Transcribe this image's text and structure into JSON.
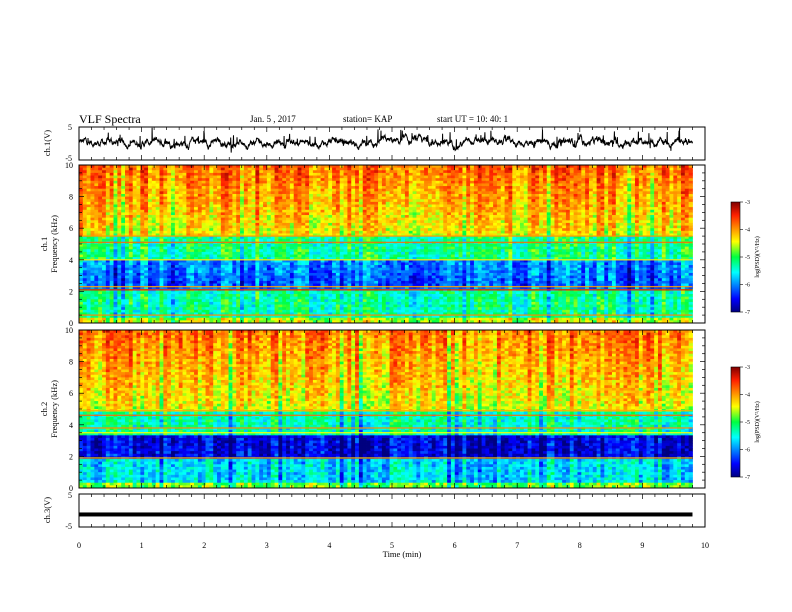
{
  "header": {
    "title": "VLF Spectra",
    "date": "Jan. 5 , 2017",
    "station": "station= KAP",
    "start": "start UT =  10: 40: 1"
  },
  "chart_data": [
    {
      "type": "line",
      "id": "ch1-waveform",
      "ylabel": "ch.1(V)",
      "ylim": [
        -5,
        5
      ],
      "yticks": [
        "5",
        "-5"
      ],
      "xlim": [
        0,
        10
      ],
      "x_end": 9.8,
      "baseline": 0.3,
      "amplitude": 1.8
    },
    {
      "type": "heatmap",
      "id": "ch1-spectrogram",
      "ylabel": "ch.1\nFrequency  (kHz)",
      "ylim": [
        0,
        10
      ],
      "yticks": [
        "0",
        "2",
        "4",
        "6",
        "8",
        "10"
      ],
      "xlim": [
        0,
        9.8
      ],
      "colorbar": {
        "label": "log(PSD)(V²/Hz)",
        "range": [
          -7,
          -3
        ],
        "ticks": [
          "-3",
          "-4",
          "-5",
          "-6",
          "-7"
        ]
      }
    },
    {
      "type": "heatmap",
      "id": "ch2-spectrogram",
      "ylabel": "ch.2\nFrequency  (kHz)",
      "ylim": [
        0,
        10
      ],
      "yticks": [
        "0",
        "2",
        "4",
        "6",
        "8",
        "10"
      ],
      "xlim": [
        0,
        9.8
      ],
      "colorbar": {
        "label": "log(PSD)(V²/Hz)",
        "range": [
          -7,
          -3
        ],
        "ticks": [
          "-3",
          "-4",
          "-5",
          "-6",
          "-7"
        ]
      }
    },
    {
      "type": "line",
      "id": "ch3-waveform",
      "ylabel": "ch.3(V)",
      "ylim": [
        -5,
        5
      ],
      "yticks": [
        "5",
        "-5"
      ],
      "xlim": [
        0,
        10
      ],
      "x_end": 9.8,
      "value": -1.2,
      "xlabel": "Time  (min)",
      "xticks": [
        "0",
        "1",
        "2",
        "3",
        "4",
        "5",
        "6",
        "7",
        "8",
        "9",
        "10"
      ]
    }
  ]
}
